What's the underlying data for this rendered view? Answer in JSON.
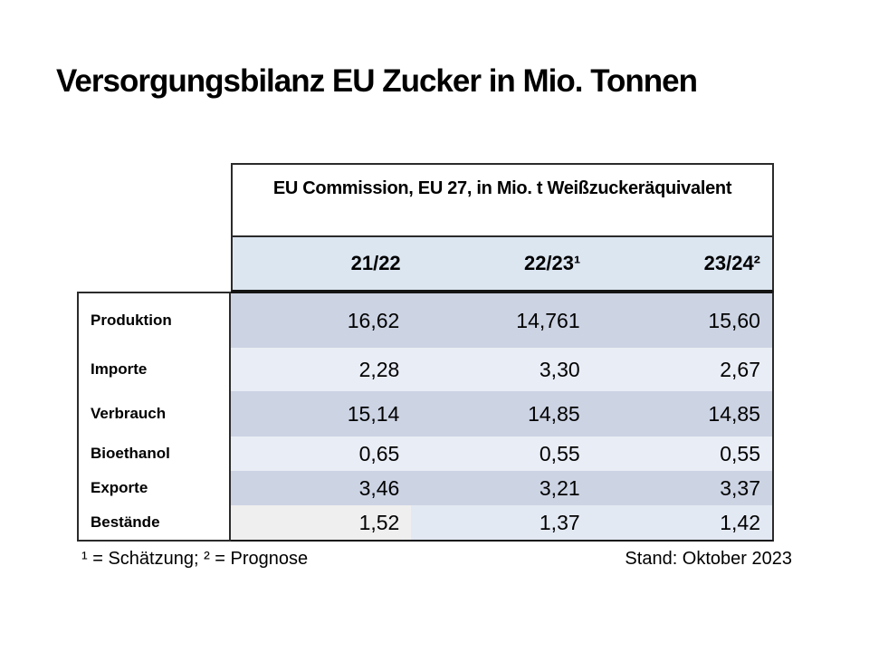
{
  "slide": {
    "title": "Versorgungsbilanz EU Zucker in Mio. Tonnen",
    "footnote_left": "¹ = Schätzung; ² = Prognose",
    "footnote_right": "Stand: Oktober 2023"
  },
  "table": {
    "header": "EU Commission, EU 27, in Mio. t Weißzuckeräquivalent",
    "header_row_color": "#dce6f1",
    "columns": [
      "21/22",
      "22/23¹",
      "23/24²"
    ],
    "rows": [
      {
        "label": "Produktion",
        "values": [
          "16,62",
          "14,761",
          "15,60"
        ],
        "cell_colors": [
          "#ccd3e3",
          "#ccd3e3",
          "#ccd3e3"
        ]
      },
      {
        "label": "Importe",
        "values": [
          "2,28",
          "3,30",
          "2,67"
        ],
        "cell_colors": [
          "#e9edf5",
          "#e9edf5",
          "#e9edf5"
        ]
      },
      {
        "label": "Verbrauch",
        "values": [
          "15,14",
          "14,85",
          "14,85"
        ],
        "cell_colors": [
          "#ccd3e3",
          "#ccd3e3",
          "#ccd3e3"
        ]
      },
      {
        "label": "Bioethanol",
        "values": [
          "0,65",
          "0,55",
          "0,55"
        ],
        "cell_colors": [
          "#e9edf5",
          "#e9edf5",
          "#e9edf5"
        ]
      },
      {
        "label": "Exporte",
        "values": [
          "3,46",
          "3,21",
          "3,37"
        ],
        "cell_colors": [
          "#ccd3e3",
          "#ccd3e3",
          "#ccd3e3"
        ]
      },
      {
        "label": "Bestände",
        "values": [
          "1,52",
          "1,37",
          "1,42"
        ],
        "cell_colors": [
          "#efefef",
          "#e3e9f3",
          "#e3e9f3"
        ]
      }
    ]
  },
  "chart_data": {
    "type": "table",
    "title": "Versorgungsbilanz EU Zucker in Mio. Tonnen",
    "subtitle": "EU Commission, EU 27, in Mio. t Weißzuckeräquivalent",
    "columns": [
      "21/22",
      "22/23¹",
      "23/24²"
    ],
    "rows": [
      {
        "category": "Produktion",
        "values": [
          16.62,
          14.761,
          15.6
        ]
      },
      {
        "category": "Importe",
        "values": [
          2.28,
          3.3,
          2.67
        ]
      },
      {
        "category": "Verbrauch",
        "values": [
          15.14,
          14.85,
          14.85
        ]
      },
      {
        "category": "Bioethanol",
        "values": [
          0.65,
          0.55,
          0.55
        ]
      },
      {
        "category": "Exporte",
        "values": [
          3.46,
          3.21,
          3.37
        ]
      },
      {
        "category": "Bestände",
        "values": [
          1.52,
          1.37,
          1.42
        ]
      }
    ],
    "notes": "¹ = Schätzung; ² = Prognose; Stand: Oktober 2023"
  }
}
